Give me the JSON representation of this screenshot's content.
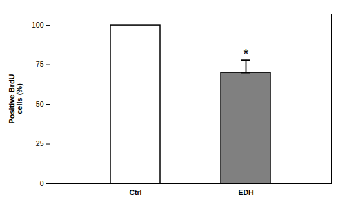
{
  "chart_data": {
    "type": "bar",
    "categories": [
      "Ctrl",
      "EDH"
    ],
    "values": [
      100,
      70
    ],
    "colors": [
      "#ffffff",
      "#808080"
    ],
    "error_low": [
      null,
      0
    ],
    "error_high": [
      null,
      8
    ],
    "ylabel": "Positive BrdU\ncells (%)",
    "ylim": [
      0,
      107
    ],
    "yticks": [
      0,
      25,
      50,
      75,
      100
    ],
    "grid": false,
    "annotations": [
      {
        "text": "*",
        "category": "EDH"
      }
    ]
  }
}
